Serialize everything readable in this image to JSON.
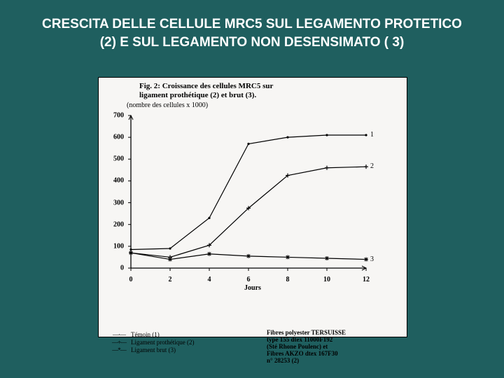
{
  "slide": {
    "background_color": "#1f5f5f",
    "title_line1": "CRESCITA DELLE CELLULE MRC5 SUL LEGAMENTO PROTETICO",
    "title_line2": "(2) E SUL LEGAMENTO NON DESENSIMATO ( 3)",
    "title_color": "#ffffff",
    "title_fontsize": 19
  },
  "figure": {
    "bg": "#f7f6f4",
    "caption_line1": "Fig. 2: Croissance des cellules MRC5 sur",
    "caption_line2": "ligament prothétique (2) et brut (3).",
    "subcaption": "(nombre des cellules x 1000)",
    "xlabel": "Jours",
    "chart": {
      "type": "line",
      "xlim": [
        0,
        12
      ],
      "ylim": [
        0,
        700
      ],
      "xtick_step": 2,
      "ytick_step": 100,
      "axis_color": "#000000",
      "line_color": "#000000",
      "line_width": 1.2,
      "series": [
        {
          "name": "1",
          "tag": "1",
          "marker": "dot",
          "x": [
            0,
            2,
            4,
            6,
            8,
            10,
            12
          ],
          "y": [
            85,
            90,
            230,
            570,
            600,
            610,
            610
          ]
        },
        {
          "name": "2",
          "tag": "2",
          "marker": "plus",
          "x": [
            0,
            2,
            4,
            6,
            8,
            10,
            12
          ],
          "y": [
            70,
            50,
            105,
            275,
            425,
            460,
            465
          ]
        },
        {
          "name": "3",
          "tag": "3",
          "marker": "star",
          "x": [
            0,
            2,
            4,
            6,
            8,
            10,
            12
          ],
          "y": [
            70,
            40,
            65,
            55,
            50,
            45,
            40
          ]
        }
      ]
    },
    "legend_left": [
      {
        "symbol": "—·—",
        "label": "Témoin (1)"
      },
      {
        "symbol": "—+—",
        "label": "Ligament prothétique (2)"
      },
      {
        "symbol": "—*—",
        "label": "Ligament brut (3)"
      }
    ],
    "legend_right_lines": [
      "Fibres polyester TERSUISSE",
      "type 155 dtex 11000F192",
      "(Sté Rhone Poulenc) et",
      "Fibres AKZO dtex 167F30",
      "n° 28253    (2)"
    ]
  }
}
